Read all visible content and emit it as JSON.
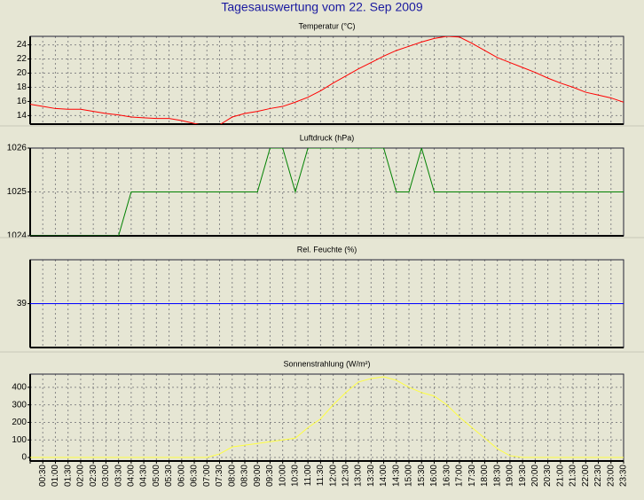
{
  "title": "Tagesauswertung vom 22. Sep 2009",
  "chart_data": [
    {
      "type": "line",
      "title": "Temperatur (°C)",
      "ylim": [
        12.8,
        25.2
      ],
      "yticks": [
        14,
        16,
        18,
        20,
        22,
        24
      ],
      "grid": true,
      "series": [
        {
          "name": "Temperatur",
          "color": "#ff0000",
          "values": [
            15.6,
            15.3,
            15.0,
            14.9,
            14.9,
            14.6,
            14.3,
            14.1,
            13.8,
            13.7,
            13.6,
            13.6,
            13.3,
            12.9,
            12.5,
            12.7,
            13.8,
            14.3,
            14.6,
            15.0,
            15.3,
            15.9,
            16.6,
            17.5,
            18.6,
            19.6,
            20.6,
            21.5,
            22.4,
            23.2,
            23.8,
            24.4,
            24.9,
            25.2,
            25.1,
            24.2,
            23.2,
            22.2,
            21.5,
            20.8,
            20.1,
            19.3,
            18.6,
            18.0,
            17.3,
            16.9,
            16.5,
            15.9
          ]
        }
      ]
    },
    {
      "type": "line",
      "title": "Luftdruck (hPa)",
      "ylim": [
        1024,
        1026
      ],
      "yticks": [
        1024,
        1025,
        1026
      ],
      "grid": true,
      "series": [
        {
          "name": "Luftdruck",
          "color": "#008000",
          "values": [
            1024,
            1024,
            1024,
            1024,
            1024,
            1024,
            1024,
            1024,
            1025,
            1025,
            1025,
            1025,
            1025,
            1025,
            1025,
            1025,
            1025,
            1025,
            1025,
            1026,
            1026,
            1025,
            1026,
            1026,
            1026,
            1026,
            1026,
            1026,
            1026,
            1025,
            1025,
            1026,
            1025,
            1025,
            1025,
            1025,
            1025,
            1025,
            1025,
            1025,
            1025,
            1025,
            1025,
            1025,
            1025,
            1025,
            1025,
            1025
          ]
        }
      ]
    },
    {
      "type": "line",
      "title": "Rel. Feuchte (%)",
      "ylim": [
        38,
        40
      ],
      "yticks": [
        39
      ],
      "grid": true,
      "series": [
        {
          "name": "Rel. Feuchte",
          "color": "#0000ff",
          "values": [
            39,
            39,
            39,
            39,
            39,
            39,
            39,
            39,
            39,
            39,
            39,
            39,
            39,
            39,
            39,
            39,
            39,
            39,
            39,
            39,
            39,
            39,
            39,
            39,
            39,
            39,
            39,
            39,
            39,
            39,
            39,
            39,
            39,
            39,
            39,
            39,
            39,
            39,
            39,
            39,
            39,
            39,
            39,
            39,
            39,
            39,
            39,
            39
          ]
        }
      ]
    },
    {
      "type": "line",
      "title": "Sonnenstrahlung (W/m²)",
      "ylim": [
        -20,
        475
      ],
      "yticks": [
        0,
        100,
        200,
        300,
        400
      ],
      "grid": true,
      "categories": [
        null,
        "00:30",
        "01:00",
        "01:30",
        "02:00",
        "02:30",
        "03:00",
        "03:30",
        "04:00",
        "04:30",
        "05:00",
        "05:30",
        "06:00",
        "06:30",
        "07:00",
        "07:30",
        "08:00",
        "08:30",
        "09:00",
        "09:30",
        "10:00",
        "10:30",
        "11:00",
        "11:30",
        "12:00",
        "12:30",
        "13:00",
        "13:30",
        "14:00",
        "14:30",
        "15:00",
        "15:30",
        "16:00",
        "16:30",
        "17:00",
        "17:30",
        "18:00",
        "18:30",
        "19:00",
        "19:30",
        "20:00",
        "20:30",
        "21:00",
        "21:30",
        "22:00",
        "22:30",
        "23:00",
        "23:30"
      ],
      "series": [
        {
          "name": "Sonnenstrahlung",
          "color": "#ffff40",
          "values": [
            0,
            0,
            0,
            0,
            0,
            0,
            0,
            0,
            0,
            0,
            0,
            0,
            0,
            0,
            0,
            20,
            60,
            70,
            80,
            90,
            100,
            110,
            170,
            220,
            300,
            370,
            430,
            450,
            460,
            440,
            400,
            370,
            350,
            300,
            230,
            170,
            110,
            50,
            10,
            0,
            0,
            0,
            0,
            0,
            0,
            0,
            0,
            0
          ]
        }
      ]
    }
  ]
}
